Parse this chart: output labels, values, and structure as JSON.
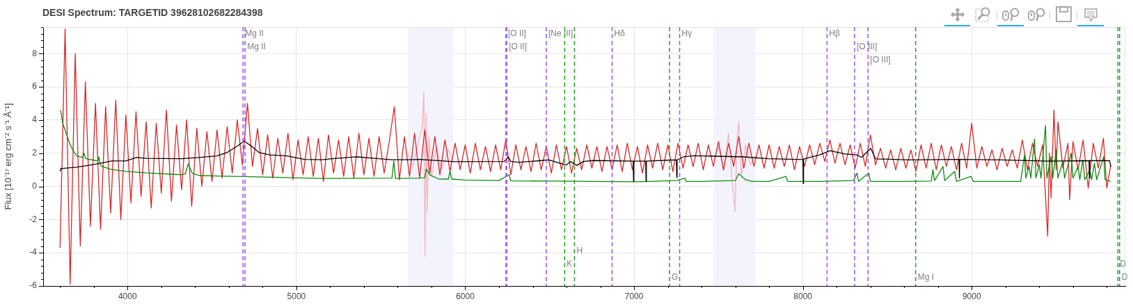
{
  "chart_data": {
    "type": "line",
    "title": "DESI Spectrum: TARGETID 39628102682284398",
    "ylabel": "Flux [10⁻¹⁷ erg cm⁻² s⁻¹ Å⁻¹]",
    "xlim": [
      3500,
      9910
    ],
    "ylim": [
      -6,
      9.6
    ],
    "xticks": [
      {
        "value": 3600,
        "label": null
      },
      {
        "value": 3800,
        "label": null
      },
      4000,
      {
        "value": 4200,
        "label": null
      },
      {
        "value": 4400,
        "label": null
      },
      {
        "value": 4600,
        "label": null
      },
      {
        "value": 4800,
        "label": null
      },
      5000,
      {
        "value": 5200,
        "label": null
      },
      {
        "value": 5400,
        "label": null
      },
      {
        "value": 5600,
        "label": null
      },
      {
        "value": 5800,
        "label": null
      },
      6000,
      {
        "value": 6200,
        "label": null
      },
      {
        "value": 6400,
        "label": null
      },
      {
        "value": 6600,
        "label": null
      },
      {
        "value": 6800,
        "label": null
      },
      7000,
      {
        "value": 7200,
        "label": null
      },
      {
        "value": 7400,
        "label": null
      },
      {
        "value": 7600,
        "label": null
      },
      {
        "value": 7800,
        "label": null
      },
      8000,
      {
        "value": 8200,
        "label": null
      },
      {
        "value": 8400,
        "label": null
      },
      {
        "value": 8600,
        "label": null
      },
      {
        "value": 8800,
        "label": null
      },
      9000,
      {
        "value": 9200,
        "label": null
      },
      {
        "value": 9400,
        "label": null
      },
      {
        "value": 9600,
        "label": null
      },
      {
        "value": 9800,
        "label": null
      }
    ],
    "yticks": [
      -6,
      {
        "value": -5.6,
        "label": null
      },
      {
        "value": -5.2,
        "label": null
      },
      {
        "value": -4.8,
        "label": null
      },
      {
        "value": -4.4,
        "label": null
      },
      -4,
      {
        "value": -3.6,
        "label": null
      },
      {
        "value": -3.2,
        "label": null
      },
      {
        "value": -2.8,
        "label": null
      },
      {
        "value": -2.4,
        "label": null
      },
      -2,
      {
        "value": -1.6,
        "label": null
      },
      {
        "value": -1.2,
        "label": null
      },
      {
        "value": -0.8,
        "label": null
      },
      {
        "value": -0.4,
        "label": null
      },
      0,
      {
        "value": 0.4,
        "label": null
      },
      {
        "value": 0.8,
        "label": null
      },
      {
        "value": 1.2,
        "label": null
      },
      {
        "value": 1.6,
        "label": null
      },
      2,
      {
        "value": 2.4,
        "label": null
      },
      {
        "value": 2.8,
        "label": null
      },
      {
        "value": 3.2,
        "label": null
      },
      {
        "value": 3.6,
        "label": null
      },
      4,
      {
        "value": 4.4,
        "label": null
      },
      {
        "value": 4.8,
        "label": null
      },
      {
        "value": 5.2,
        "label": null
      },
      {
        "value": 5.6,
        "label": null
      },
      6,
      {
        "value": 6.4,
        "label": null
      },
      {
        "value": 6.8,
        "label": null
      },
      {
        "value": 7.2,
        "label": null
      },
      {
        "value": 7.6,
        "label": null
      },
      8,
      {
        "value": 8.4,
        "label": null
      },
      {
        "value": 8.8,
        "label": null
      },
      {
        "value": 9.2,
        "label": null
      },
      {
        "value": 9.6,
        "label": null
      }
    ],
    "grid": true,
    "bands": [
      {
        "axis": "x",
        "from": 5660,
        "to": 5930,
        "color": "#f3f3fd"
      },
      {
        "axis": "x",
        "from": 7470,
        "to": 7720,
        "color": "#f3f3fd"
      }
    ],
    "series": [
      {
        "color": "#f2b5bd",
        "x": [
          5660,
          5690,
          5720,
          5745,
          5755,
          5762,
          5768,
          5775,
          5785,
          5800,
          5830,
          5860,
          5900,
          5930,
          6000,
          7470,
          7500,
          7530,
          7560,
          7580,
          7598,
          7610,
          7620,
          7635,
          7660,
          7690,
          7720
        ],
        "values": [
          2.0,
          1.2,
          2.6,
          3.5,
          5.7,
          -4.2,
          4.4,
          -1.5,
          3.0,
          0.6,
          2.4,
          1.0,
          2.2,
          1.5,
          null,
          1.6,
          2.4,
          1.0,
          3.2,
          0.4,
          -1.5,
          2.8,
          3.9,
          0.6,
          2.5,
          1.3,
          1.8
        ]
      },
      {
        "color": "#d62728",
        "x": [
          3600,
          3630,
          3660,
          3690,
          3720,
          3750,
          3780,
          3810,
          3840,
          3870,
          3900,
          3930,
          3960,
          3990,
          4020,
          4050,
          4080,
          4110,
          4140,
          4170,
          4200,
          4230,
          4260,
          4290,
          4320,
          4350,
          4380,
          4410,
          4440,
          4470,
          4500,
          4530,
          4560,
          4590,
          4620,
          4650,
          4680,
          4710,
          4740,
          4770,
          4800,
          4830,
          4860,
          4890,
          4920,
          4950,
          4980,
          5010,
          5040,
          5070,
          5100,
          5130,
          5160,
          5190,
          5220,
          5250,
          5280,
          5310,
          5340,
          5370,
          5400,
          5430,
          5460,
          5490,
          5520,
          5550,
          5580,
          5610,
          5640,
          5670,
          5700,
          5730,
          5760,
          5790,
          5820,
          5850,
          5880,
          5910,
          5940,
          5970,
          6000,
          6030,
          6060,
          6090,
          6120,
          6150,
          6180,
          6210,
          6240,
          6270,
          6300,
          6330,
          6360,
          6390,
          6420,
          6450,
          6480,
          6510,
          6540,
          6570,
          6600,
          6630,
          6660,
          6690,
          6720,
          6750,
          6780,
          6810,
          6840,
          6870,
          6900,
          6930,
          6960,
          6990,
          7020,
          7050,
          7080,
          7110,
          7140,
          7170,
          7200,
          7230,
          7260,
          7290,
          7320,
          7350,
          7380,
          7410,
          7440,
          7470,
          7500,
          7530,
          7560,
          7590,
          7620,
          7650,
          7680,
          7710,
          7740,
          7770,
          7800,
          7830,
          7860,
          7890,
          7920,
          7950,
          7980,
          8010,
          8040,
          8070,
          8100,
          8130,
          8160,
          8190,
          8220,
          8250,
          8280,
          8310,
          8340,
          8370,
          8400,
          8430,
          8460,
          8490,
          8520,
          8550,
          8580,
          8610,
          8640,
          8670,
          8700,
          8730,
          8760,
          8790,
          8820,
          8850,
          8880,
          8910,
          8940,
          8970,
          9000,
          9030,
          9060,
          9090,
          9120,
          9150,
          9180,
          9210,
          9240,
          9270,
          9300,
          9330,
          9360,
          9390,
          9420,
          9450,
          9460,
          9470,
          9487,
          9500,
          9511,
          9540,
          9570,
          9580,
          9600,
          9630,
          9660,
          9690,
          9720,
          9750,
          9780,
          9800,
          9824
        ],
        "values": [
          -3.7,
          9.5,
          -5.9,
          8.0,
          -3.6,
          6.3,
          -2.4,
          5.0,
          -2.6,
          4.8,
          -1.6,
          5.2,
          -2.0,
          4.3,
          -1.0,
          4.5,
          -0.6,
          3.9,
          -1.3,
          3.8,
          -0.4,
          4.6,
          -0.9,
          3.7,
          -0.2,
          4.0,
          -1.2,
          3.5,
          0.0,
          3.3,
          0.3,
          3.4,
          0.5,
          3.6,
          0.8,
          4.0,
          1.3,
          5.0,
          1.2,
          3.5,
          0.7,
          3.1,
          0.5,
          2.9,
          0.8,
          3.2,
          0.4,
          2.8,
          0.7,
          3.0,
          0.6,
          2.9,
          0.3,
          3.1,
          0.8,
          2.8,
          0.6,
          3.0,
          0.5,
          3.2,
          0.7,
          2.9,
          0.6,
          3.0,
          0.8,
          2.7,
          4.8,
          0.4,
          3.0,
          0.6,
          3.2,
          0.5,
          3.4,
          0.8,
          3.0,
          0.7,
          2.8,
          0.9,
          2.6,
          1.0,
          2.5,
          0.8,
          2.6,
          1.0,
          2.4,
          0.9,
          2.5,
          1.0,
          2.8,
          0.7,
          2.5,
          1.0,
          2.4,
          0.9,
          2.6,
          1.0,
          2.4,
          0.8,
          2.5,
          1.0,
          2.4,
          0.8,
          2.3,
          1.0,
          2.5,
          1.1,
          2.4,
          0.9,
          2.4,
          1.0,
          2.5,
          0.9,
          2.6,
          1.0,
          2.4,
          0.8,
          2.5,
          1.1,
          2.6,
          1.0,
          2.5,
          0.9,
          2.6,
          1.1,
          2.5,
          1.2,
          2.6,
          1.0,
          2.5,
          1.2,
          2.7,
          1.0,
          2.6,
          1.2,
          3.0,
          1.1,
          2.6,
          1.2,
          2.5,
          1.1,
          2.5,
          1.1,
          2.4,
          1.2,
          2.5,
          1.0,
          2.4,
          1.2,
          2.5,
          1.3,
          2.6,
          1.5,
          2.8,
          1.4,
          2.6,
          1.3,
          2.5,
          1.1,
          2.6,
          1.2,
          3.1,
          1.3,
          2.3,
          1.1,
          2.2,
          1.0,
          2.3,
          1.1,
          2.2,
          0.9,
          2.5,
          1.1,
          2.6,
          1.0,
          2.5,
          1.2,
          2.4,
          1.0,
          2.6,
          1.1,
          3.8,
          1.1,
          2.4,
          1.2,
          2.2,
          1.0,
          2.3,
          1.2,
          2.2,
          1.1,
          2.8,
          1.0,
          2.6,
          1.2,
          2.5,
          -3.0,
          2.0,
          -0.7,
          4.6,
          1.0,
          3.9,
          1.1,
          2.6,
          -0.8,
          2.7,
          1.0,
          2.8,
          -0.1,
          2.6,
          1.1,
          2.9,
          -0.1,
          1.3
        ]
      },
      {
        "color": "#0a8a0a",
        "x": [
          3600,
          3605,
          3616,
          3637,
          3658,
          3678,
          3699,
          3735,
          3741,
          3750,
          3761,
          3800,
          3824,
          3830,
          3836,
          3844,
          3907,
          3990,
          4114,
          4322,
          4342,
          4359,
          4384,
          4425,
          4529,
          4737,
          5151,
          5566,
          5577,
          5587,
          5726,
          5760,
          5770,
          5790,
          5840,
          5900,
          5910,
          5920,
          6000,
          6200,
          6260,
          6270,
          6500,
          7000,
          7100,
          7253,
          7300,
          7310,
          7400,
          7600,
          7620,
          7660,
          7700,
          7800,
          7900,
          7910,
          8000,
          8100,
          8300,
          8320,
          8330,
          8390,
          8400,
          8600,
          8761,
          8770,
          8780,
          8830,
          8840,
          8899,
          8910,
          8996,
          9010,
          9290,
          9313,
          9320,
          9340,
          9350,
          9372,
          9380,
          9400,
          9410,
          9437,
          9445,
          9471,
          9480,
          9500,
          9510,
          9540,
          9550,
          9589,
          9600,
          9630,
          9640,
          9658,
          9670,
          9700,
          9710,
          9727,
          9740,
          9782,
          9790,
          9824
        ],
        "values": [
          4.59,
          4.5,
          3.8,
          3.18,
          2.56,
          2.15,
          1.84,
          1.74,
          2.0,
          1.72,
          1.65,
          1.58,
          1.53,
          1.78,
          1.4,
          1.22,
          1.01,
          0.91,
          0.81,
          0.7,
          0.75,
          1.36,
          0.78,
          0.66,
          0.62,
          0.58,
          0.48,
          0.5,
          1.53,
          0.48,
          0.5,
          0.52,
          1.04,
          0.7,
          0.45,
          0.44,
          0.9,
          0.44,
          0.38,
          0.35,
          0.7,
          0.33,
          0.32,
          0.28,
          0.3,
          0.35,
          0.5,
          0.3,
          0.3,
          0.35,
          0.76,
          0.4,
          0.3,
          0.3,
          0.6,
          0.3,
          0.3,
          0.3,
          0.35,
          0.8,
          0.3,
          0.8,
          0.3,
          0.3,
          0.32,
          1.0,
          0.35,
          1.2,
          0.35,
          0.9,
          0.3,
          0.6,
          0.3,
          0.3,
          1.9,
          0.5,
          1.2,
          0.5,
          2.85,
          0.5,
          1.3,
          0.5,
          3.67,
          0.5,
          1.8,
          0.5,
          2.2,
          0.5,
          1.5,
          0.5,
          2.0,
          0.5,
          1.2,
          0.4,
          1.6,
          0.4,
          1.0,
          0.4,
          1.4,
          0.4,
          1.8,
          0.4,
          0.3
        ]
      },
      {
        "color": "#000000",
        "x": [
          3600,
          3605,
          3699,
          3803,
          3907,
          3990,
          4052,
          4114,
          4322,
          4425,
          4529,
          4591,
          4654,
          4691,
          4737,
          4778,
          4840,
          4944,
          5048,
          5151,
          5214,
          5359,
          5463,
          5566,
          5670,
          5726,
          5933,
          6230,
          6255,
          6270,
          6317,
          6440,
          6495,
          6560,
          6598,
          6625,
          6661,
          6700,
          6761,
          6995,
          6997,
          6999,
          7069,
          7071,
          7073,
          7204,
          7251,
          7253,
          7255,
          7293,
          7352,
          7648,
          7795,
          8000,
          8002,
          8004,
          8100,
          8161,
          8250,
          8320,
          8347,
          8402,
          8430,
          8623,
          8925,
          8927,
          8929,
          9175,
          9451,
          9695,
          9697,
          9699,
          9817,
          9824
        ],
        "values": [
          0.91,
          1.07,
          1.16,
          1.32,
          1.53,
          1.53,
          1.74,
          1.69,
          1.67,
          1.74,
          1.84,
          2.05,
          2.46,
          2.73,
          2.4,
          2.05,
          1.9,
          1.84,
          1.63,
          1.61,
          1.67,
          1.78,
          1.69,
          1.61,
          1.61,
          1.63,
          1.49,
          1.5,
          1.78,
          1.5,
          1.45,
          1.55,
          1.6,
          1.4,
          1.29,
          1.5,
          1.26,
          1.5,
          1.56,
          1.52,
          0.3,
          1.52,
          1.52,
          0.3,
          1.52,
          1.58,
          1.6,
          0.55,
          1.6,
          1.78,
          1.85,
          1.78,
          1.67,
          1.62,
          0.17,
          1.65,
          1.9,
          2.15,
          1.95,
          1.9,
          1.75,
          2.29,
          1.66,
          1.6,
          1.63,
          0.5,
          1.63,
          1.6,
          1.52,
          1.55,
          0.5,
          1.55,
          1.55,
          1.18
        ]
      }
    ],
    "ref_lines": [
      {
        "axis": "x",
        "value": 4684,
        "color": "#9b4ff0",
        "line_style": "dashed"
      },
      {
        "axis": "x",
        "value": 4696,
        "color": "#9b4ff0",
        "line_style": "dashed"
      },
      {
        "axis": "x",
        "value": 6241,
        "color": "#9b4ff0",
        "line_style": "dashed"
      },
      {
        "axis": "x",
        "value": 6246,
        "color": "#9b4ff0",
        "line_style": "dashed"
      },
      {
        "axis": "x",
        "value": 6480,
        "color": "#9b4ff0",
        "line_style": "dashed"
      },
      {
        "axis": "x",
        "value": 6870,
        "color": "#9b4ff0",
        "line_style": "dashed"
      },
      {
        "axis": "x",
        "value": 7270,
        "color": "#9b4ff0",
        "line_style": "dashed"
      },
      {
        "axis": "x",
        "value": 8143,
        "color": "#9b4ff0",
        "line_style": "dashed"
      },
      {
        "axis": "x",
        "value": 8306,
        "color": "#9b4ff0",
        "line_style": "dashed"
      },
      {
        "axis": "x",
        "value": 8386,
        "color": "#9b4ff0",
        "line_style": "dashed"
      },
      {
        "axis": "x",
        "value": 6589,
        "color": "#22a022",
        "line_style": "dashed"
      },
      {
        "axis": "x",
        "value": 6647,
        "color": "#22a022",
        "line_style": "dashed"
      },
      {
        "axis": "x",
        "value": 7210,
        "color": "#22a022",
        "line_style": "dashed"
      },
      {
        "axis": "x",
        "value": 8668,
        "color": "#22a022",
        "line_style": "dashed"
      },
      {
        "axis": "x",
        "value": 9866,
        "color": "#22a022",
        "line_style": "dashed"
      },
      {
        "axis": "x",
        "value": 9876,
        "color": "#22a022",
        "line_style": "dashed"
      }
    ],
    "annotations": [
      {
        "text": "Mg II",
        "x": 4684,
        "y": 9.2
      },
      {
        "text": "Mg II",
        "x": 4696,
        "y": 8.4
      },
      {
        "text": "[O II]",
        "x": 6241,
        "y": 9.2
      },
      {
        "text": "[O II]",
        "x": 6246,
        "y": 8.4
      },
      {
        "text": "[Ne III]",
        "x": 6480,
        "y": 9.2
      },
      {
        "text": "Hδ",
        "x": 6870,
        "y": 9.2
      },
      {
        "text": "Hγ",
        "x": 7270,
        "y": 9.2
      },
      {
        "text": "Hβ",
        "x": 8143,
        "y": 9.2
      },
      {
        "text": "[O III]",
        "x": 8306,
        "y": 8.4
      },
      {
        "text": "[O III]",
        "x": 8386,
        "y": 7.6
      },
      {
        "text": "K",
        "x": 6589,
        "y": -4.7
      },
      {
        "text": "H",
        "x": 6647,
        "y": -3.9
      },
      {
        "text": "G",
        "x": 7210,
        "y": -5.5
      },
      {
        "text": "Mg I",
        "x": 8668,
        "y": -5.5
      },
      {
        "text": "D",
        "x": 9866,
        "y": -4.7
      },
      {
        "text": "D",
        "x": 9876,
        "y": -5.5
      }
    ]
  }
}
